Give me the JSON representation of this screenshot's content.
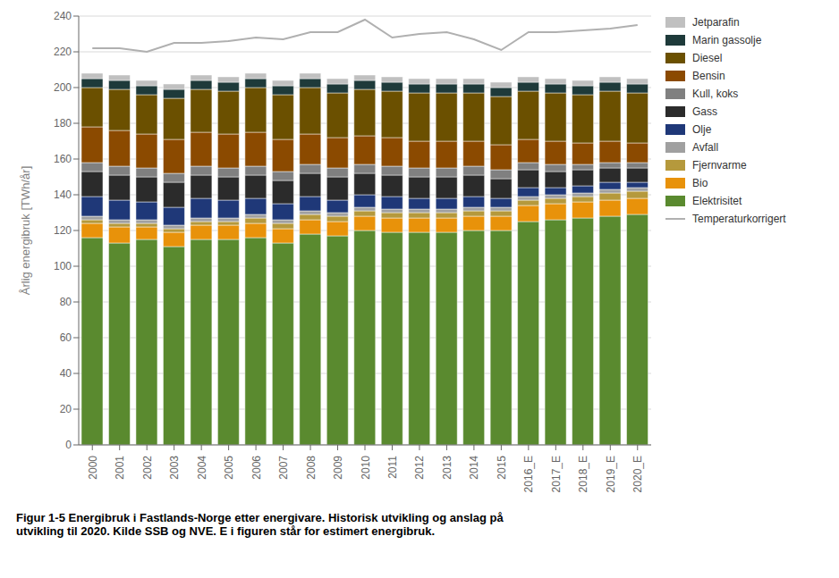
{
  "chart_data": {
    "type": "bar",
    "stacked": true,
    "grid": true,
    "legend": "right",
    "ylabel": "Årlig energibruk [TWh/år]",
    "annotations": [
      "Figur 1-5 Energibruk i Fastlands-Norge etter energivare. Historisk utvikling og anslag på",
      "utvikling til 2020. Kilde SSB og NVE. E i figuren står for estimert energibruk."
    ],
    "categories": [
      "2000",
      "2001",
      "2002",
      "2003",
      "2004",
      "2005",
      "2006",
      "2007",
      "2008",
      "2009",
      "2010",
      "2011",
      "2012",
      "2013",
      "2014",
      "2015",
      "2016_E",
      "2017_E",
      "2018_E",
      "2019_E",
      "2020_E"
    ],
    "ylim": [
      0,
      240
    ],
    "yticks": [
      0,
      20,
      40,
      60,
      80,
      100,
      120,
      140,
      160,
      180,
      200,
      220,
      240
    ],
    "series": [
      {
        "name": "Elektrisitet",
        "type": "bar",
        "color": "#5a8a2f",
        "values": [
          116,
          113,
          115,
          111,
          115,
          115,
          116,
          113,
          118,
          117,
          120,
          119,
          119,
          119,
          120,
          120,
          125,
          126,
          127,
          128,
          129
        ]
      },
      {
        "name": "Bio",
        "type": "bar",
        "color": "#e8920a",
        "values": [
          8,
          9,
          7,
          8,
          8,
          8,
          8,
          8,
          8,
          8,
          8,
          8,
          8,
          8,
          8,
          8,
          9,
          9,
          9,
          9,
          9
        ]
      },
      {
        "name": "Fjernvarme",
        "type": "bar",
        "color": "#b5993c",
        "values": [
          2,
          2,
          2,
          2,
          2,
          2,
          3,
          3,
          3,
          3,
          3,
          3,
          3,
          3,
          3,
          3,
          3,
          3,
          3,
          4,
          4
        ]
      },
      {
        "name": "Avfall",
        "type": "bar",
        "color": "#a0a0a0",
        "values": [
          2,
          2,
          2,
          2,
          2,
          2,
          2,
          2,
          2,
          2,
          2,
          2,
          2,
          2,
          2,
          2,
          2,
          2,
          2,
          2,
          2
        ]
      },
      {
        "name": "Olje",
        "type": "bar",
        "color": "#1f3878",
        "values": [
          11,
          11,
          10,
          10,
          11,
          10,
          9,
          9,
          8,
          7,
          7,
          7,
          6,
          6,
          6,
          5,
          5,
          4,
          4,
          4,
          3
        ]
      },
      {
        "name": "Gass",
        "type": "bar",
        "color": "#2b2b2b",
        "values": [
          14,
          14,
          14,
          14,
          13,
          13,
          13,
          13,
          13,
          13,
          12,
          12,
          12,
          12,
          12,
          11,
          10,
          9,
          9,
          8,
          8
        ]
      },
      {
        "name": "Kull, koks",
        "type": "bar",
        "color": "#808080",
        "values": [
          5,
          5,
          5,
          5,
          5,
          5,
          5,
          5,
          5,
          5,
          5,
          5,
          5,
          5,
          5,
          5,
          4,
          4,
          3,
          3,
          3
        ]
      },
      {
        "name": "Bensin",
        "type": "bar",
        "color": "#8b4a00",
        "values": [
          20,
          20,
          19,
          19,
          19,
          19,
          19,
          18,
          17,
          17,
          16,
          16,
          15,
          15,
          14,
          14,
          13,
          13,
          12,
          12,
          11
        ]
      },
      {
        "name": "Diesel",
        "type": "bar",
        "color": "#6b5000",
        "values": [
          22,
          23,
          22,
          23,
          24,
          24,
          25,
          25,
          26,
          25,
          26,
          26,
          27,
          27,
          27,
          27,
          27,
          27,
          27,
          28,
          28
        ]
      },
      {
        "name": "Marin gassolje",
        "type": "bar",
        "color": "#1e3a3a",
        "values": [
          5,
          5,
          5,
          5,
          5,
          5,
          5,
          5,
          5,
          5,
          5,
          5,
          5,
          5,
          5,
          5,
          5,
          5,
          5,
          5,
          5
        ]
      },
      {
        "name": "Jetparafin",
        "type": "bar",
        "color": "#c0c0c0",
        "values": [
          3,
          3,
          3,
          3,
          3,
          3,
          3,
          3,
          3,
          3,
          3,
          3,
          3,
          3,
          3,
          3,
          3,
          3,
          3,
          3,
          3
        ]
      },
      {
        "name": "Temperaturkorrigert",
        "type": "line",
        "color": "#b0b0b0",
        "values": [
          222,
          222,
          220,
          225,
          225,
          226,
          228,
          227,
          231,
          231,
          238,
          228,
          230,
          231,
          227,
          221,
          231,
          231,
          232,
          233,
          235
        ]
      }
    ]
  }
}
